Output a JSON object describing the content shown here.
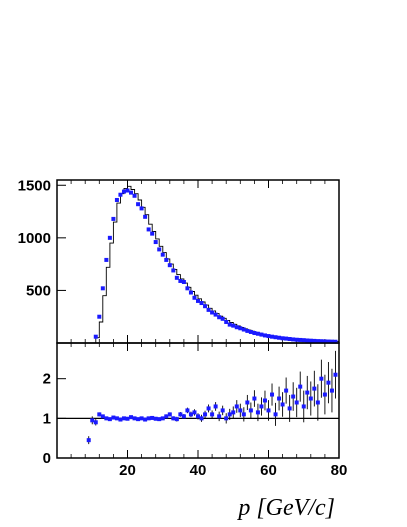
{
  "chart_data": [
    {
      "type": "line",
      "panel": "top",
      "xlim": [
        0,
        80
      ],
      "ylim": [
        0,
        1550
      ],
      "xticks": [
        20,
        40,
        60,
        80
      ],
      "yticks": [
        500,
        1000,
        1500
      ],
      "ytick_labels": [
        "500",
        "1000",
        "1500"
      ],
      "series": [
        {
          "kind": "histogram",
          "color": "#000000",
          "bin_width": 1,
          "x": [
            10,
            11,
            12,
            13,
            14,
            15,
            16,
            17,
            18,
            19,
            20,
            21,
            22,
            23,
            24,
            25,
            26,
            27,
            28,
            29,
            30,
            31,
            32,
            33,
            34,
            35,
            36,
            37,
            38,
            39,
            40,
            41,
            42,
            43,
            44,
            45,
            46,
            47,
            48,
            49,
            50,
            51,
            52,
            53,
            54,
            55,
            56,
            57,
            58,
            59,
            60,
            61,
            62,
            63,
            64,
            65,
            66,
            67,
            68,
            69,
            70,
            71,
            72,
            73,
            74,
            75,
            76,
            77,
            78,
            79,
            80
          ],
          "y": [
            0,
            50,
            200,
            450,
            720,
            950,
            1150,
            1330,
            1420,
            1470,
            1490,
            1460,
            1420,
            1360,
            1290,
            1220,
            1130,
            1060,
            990,
            920,
            860,
            800,
            750,
            700,
            650,
            610,
            570,
            530,
            490,
            455,
            420,
            390,
            360,
            330,
            305,
            280,
            255,
            235,
            215,
            195,
            178,
            162,
            148,
            135,
            123,
            112,
            102,
            93,
            85,
            77,
            70,
            64,
            58,
            53,
            48,
            44,
            40,
            36,
            33,
            30,
            28,
            25,
            23,
            21,
            19,
            17,
            16,
            15,
            14,
            13,
            12
          ]
        },
        {
          "kind": "points",
          "color": "#1a1aff",
          "x": [
            11,
            12,
            13,
            14,
            15,
            16,
            17,
            18,
            19,
            20,
            21,
            22,
            23,
            24,
            25,
            26,
            27,
            28,
            29,
            30,
            31,
            32,
            33,
            34,
            35,
            36,
            37,
            38,
            39,
            40,
            41,
            42,
            43,
            44,
            45,
            46,
            47,
            48,
            49,
            50,
            51,
            52,
            53,
            54,
            55,
            56,
            57,
            58,
            59,
            60,
            61,
            62,
            63,
            64,
            65,
            66,
            67,
            68,
            69,
            70,
            71,
            72,
            73,
            74,
            75,
            76,
            77,
            78,
            79
          ],
          "y": [
            60,
            250,
            520,
            790,
            1000,
            1180,
            1360,
            1410,
            1440,
            1450,
            1430,
            1400,
            1320,
            1280,
            1200,
            1080,
            1040,
            960,
            890,
            840,
            790,
            740,
            690,
            620,
            590,
            580,
            520,
            480,
            430,
            400,
            380,
            350,
            315,
            290,
            270,
            245,
            230,
            200,
            175,
            165,
            150,
            140,
            128,
            115,
            105,
            95,
            88,
            80,
            72,
            66,
            60,
            55,
            50,
            45,
            42,
            38,
            34,
            31,
            29,
            27,
            24,
            22,
            20,
            18,
            17,
            15,
            14,
            13,
            12
          ]
        }
      ]
    },
    {
      "type": "scatter",
      "panel": "bottom",
      "xlim": [
        0,
        80
      ],
      "ylim": [
        0,
        2.9
      ],
      "xticks": [
        20,
        40,
        60,
        80
      ],
      "xtick_labels": [
        "20",
        "40",
        "60",
        "80"
      ],
      "yticks": [
        0,
        1,
        2
      ],
      "ytick_labels": [
        "0",
        "1",
        "2"
      ],
      "reference_line": 1,
      "xlabel": "p [GeV/c]",
      "series": [
        {
          "color": "#1a1aff",
          "x": [
            9,
            10,
            11,
            12,
            13,
            14,
            15,
            16,
            17,
            18,
            19,
            20,
            21,
            22,
            23,
            24,
            25,
            26,
            27,
            28,
            29,
            30,
            31,
            32,
            33,
            34,
            35,
            36,
            37,
            38,
            39,
            40,
            41,
            42,
            43,
            44,
            45,
            46,
            47,
            48,
            49,
            50,
            51,
            52,
            53,
            54,
            55,
            56,
            57,
            58,
            59,
            60,
            61,
            62,
            63,
            64,
            65,
            66,
            67,
            68,
            69,
            70,
            71,
            72,
            73,
            74,
            75,
            76,
            77,
            78,
            79
          ],
          "y": [
            0.45,
            0.95,
            0.9,
            1.1,
            1.05,
            1.0,
            0.98,
            1.02,
            1.0,
            0.97,
            1.0,
            0.99,
            1.03,
            1.0,
            0.98,
            1.0,
            0.97,
            1.0,
            1.01,
            0.99,
            0.98,
            1.0,
            1.05,
            1.1,
            1.0,
            0.98,
            1.1,
            1.05,
            1.2,
            1.1,
            1.15,
            1.05,
            1.0,
            1.1,
            1.25,
            1.1,
            1.3,
            1.05,
            1.2,
            1.0,
            1.1,
            1.15,
            1.3,
            1.2,
            1.1,
            1.4,
            1.2,
            1.5,
            1.15,
            1.3,
            1.45,
            1.2,
            1.6,
            1.1,
            1.5,
            1.35,
            1.7,
            1.25,
            1.55,
            1.4,
            1.8,
            1.3,
            1.65,
            1.5,
            1.75,
            1.4,
            2.0,
            1.6,
            1.9,
            1.7,
            2.1
          ],
          "err": [
            0.1,
            0.1,
            0.08,
            0.05,
            0.04,
            0.04,
            0.03,
            0.03,
            0.03,
            0.03,
            0.03,
            0.03,
            0.03,
            0.03,
            0.03,
            0.03,
            0.03,
            0.03,
            0.04,
            0.04,
            0.04,
            0.04,
            0.05,
            0.05,
            0.05,
            0.06,
            0.06,
            0.06,
            0.07,
            0.07,
            0.08,
            0.08,
            0.09,
            0.09,
            0.1,
            0.1,
            0.11,
            0.12,
            0.12,
            0.13,
            0.14,
            0.15,
            0.16,
            0.17,
            0.18,
            0.19,
            0.2,
            0.21,
            0.22,
            0.23,
            0.25,
            0.26,
            0.28,
            0.29,
            0.3,
            0.31,
            0.33,
            0.34,
            0.36,
            0.37,
            0.38,
            0.4,
            0.42,
            0.43,
            0.45,
            0.46,
            0.48,
            0.5,
            0.52,
            0.55,
            0.6
          ]
        }
      ]
    }
  ]
}
